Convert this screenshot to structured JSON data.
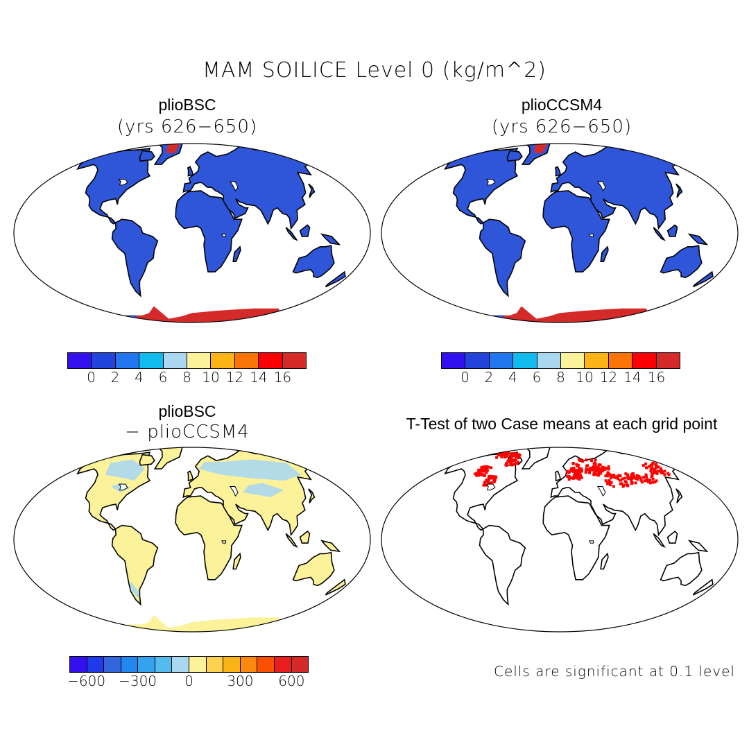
{
  "figure_title": "MAM SOILICE Level 0 (kg/m^2)",
  "panels": [
    {
      "title": "plioBSC",
      "subtitle": "(yrs 626−650)"
    },
    {
      "title": "plioCCSM4",
      "subtitle": "(yrs 626−650)"
    },
    {
      "title": "plioBSC",
      "subtitle": "− plioCCSM4"
    },
    {
      "title": "T-Test of two Case means at each grid point",
      "subtitle": ""
    }
  ],
  "colorbar_abs": {
    "colors": [
      "#3311ee",
      "#2244dd",
      "#2277ee",
      "#11bbee",
      "#aad8f0",
      "#fcf29a",
      "#fcb417",
      "#fb7408",
      "#fb0000",
      "#d42a2a"
    ],
    "ticks": [
      "0",
      "2",
      "4",
      "6",
      "8",
      "10",
      "12",
      "14",
      "16"
    ]
  },
  "colorbar_diff": {
    "colors": [
      "#3311ee",
      "#1f3ae8",
      "#3366dd",
      "#2288ee",
      "#33a3f0",
      "#55bbee",
      "#aad8f0",
      "#fcf29a",
      "#fcd050",
      "#fcb417",
      "#fb8a0e",
      "#fb5000",
      "#e81e1e",
      "#d42a2a"
    ],
    "ticks": [
      "−600",
      "−300",
      "0",
      "300",
      "600"
    ]
  },
  "significance_note": "Cells are significant at 0.1 level",
  "map_colors": {
    "land_abs": "#2f55d8",
    "ice_abs": "#d42a2a",
    "land_diff": "#fcf29a",
    "diff_patch": "#aad8f0",
    "signif": "#ff0000",
    "coast": "#000000"
  }
}
